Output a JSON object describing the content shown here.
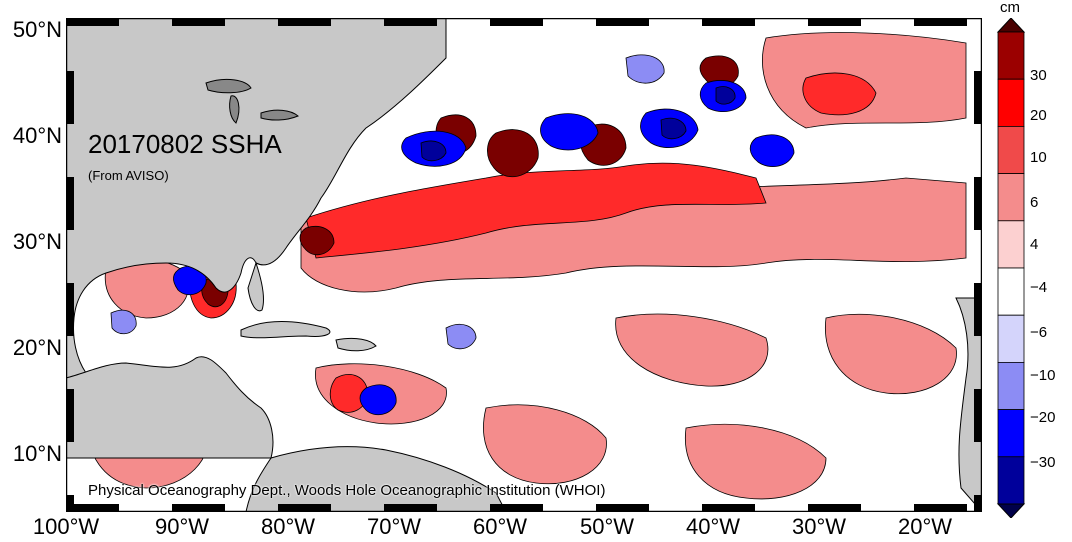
{
  "map": {
    "title": "20170802 SSHA",
    "source": "(From AVISO)",
    "credit": "Physical Oceanography Dept., Woods Hole Oceanographic Institution (WHOI)",
    "lat_labels": [
      "50°N",
      "40°N",
      "30°N",
      "20°N",
      "10°N"
    ],
    "lon_labels": [
      "100°W",
      "90°W",
      "80°W",
      "70°W",
      "60°W",
      "50°W",
      "40°W",
      "30°W",
      "20°W"
    ],
    "colors": {
      "land": "#c8c8c8",
      "coast": "#000000",
      "ocean_background": "#ffffff"
    }
  },
  "colorbar": {
    "unit": "cm",
    "tick_labels": [
      "30",
      "20",
      "10",
      "6",
      "4",
      "−4",
      "−6",
      "−10",
      "−20",
      "−30"
    ],
    "colors": [
      "#4a0000",
      "#9b0000",
      "#ff0000",
      "#f04a4a",
      "#f48c8c",
      "#fcd0d0",
      "#ffffff",
      "#d4d4fb",
      "#8c8cf4",
      "#0000ff",
      "#00009b",
      "#00004a"
    ]
  }
}
